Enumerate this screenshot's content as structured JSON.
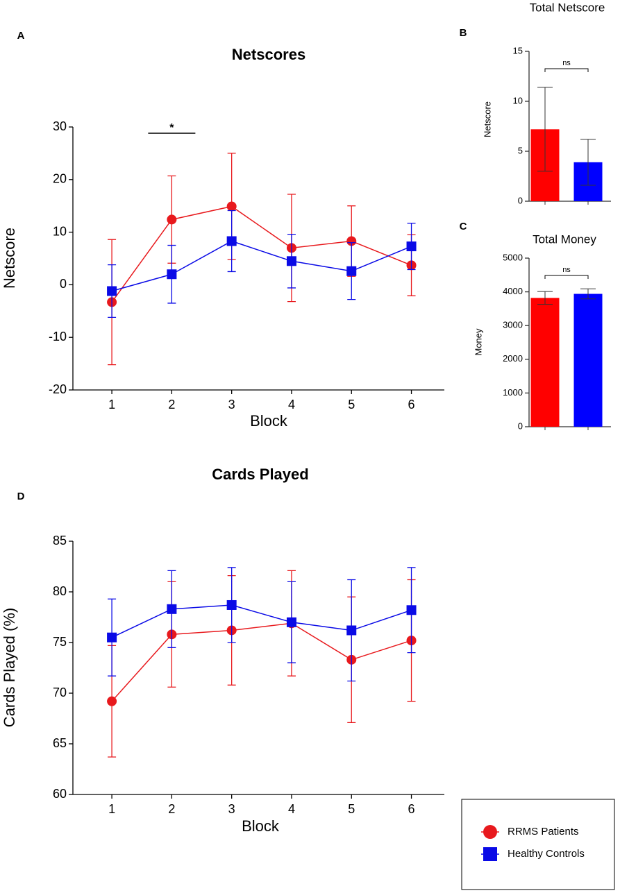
{
  "chart_data": [
    {
      "type": "line",
      "panel": "A",
      "title": "Netscores",
      "xlabel": "Block",
      "ylabel": "Netscore",
      "x": [
        1,
        2,
        3,
        4,
        5,
        6
      ],
      "xlim": [
        0.35,
        6.55
      ],
      "xticks": [
        1,
        2,
        3,
        4,
        5,
        6
      ],
      "ylim": [
        -20,
        30
      ],
      "yticks": [
        -20,
        -10,
        0,
        10,
        20,
        30
      ],
      "annotation": "*",
      "series": [
        {
          "name": "RRMS Patients",
          "color": "#e8191d",
          "marker": "circle",
          "values": [
            -3.3,
            12.4,
            14.9,
            7.0,
            8.3,
            3.7
          ],
          "errors": [
            11.9,
            8.3,
            10.1,
            10.2,
            6.7,
            5.8
          ]
        },
        {
          "name": "Healthy Controls",
          "color": "#0a0ae6",
          "marker": "square",
          "values": [
            -1.2,
            2.0,
            8.3,
            4.5,
            2.6,
            7.3
          ],
          "errors": [
            5.0,
            5.5,
            5.8,
            5.1,
            5.4,
            4.4
          ]
        }
      ]
    },
    {
      "type": "bar",
      "panel": "B",
      "title": "Total Netscore",
      "ylabel": "Netscore",
      "values": [
        7.2,
        3.9
      ],
      "errors": [
        4.2,
        2.3
      ],
      "colors": [
        "#ff0000",
        "#0000ff"
      ],
      "ylim": [
        0,
        15
      ],
      "yticks": [
        0,
        5,
        10,
        15
      ],
      "annotation": "ns"
    },
    {
      "type": "bar",
      "panel": "C",
      "title": "Total Money",
      "ylabel": "Money",
      "values": [
        3820,
        3940
      ],
      "errors": [
        190,
        150
      ],
      "colors": [
        "#ff0000",
        "#0000ff"
      ],
      "ylim": [
        0,
        5000
      ],
      "yticks": [
        0,
        1000,
        2000,
        3000,
        4000,
        5000
      ],
      "annotation": "ns"
    },
    {
      "type": "line",
      "panel": "D",
      "title": "Cards Played",
      "xlabel": "Block",
      "ylabel": "Cards Played (%)",
      "x": [
        1,
        2,
        3,
        4,
        5,
        6
      ],
      "xlim": [
        0.35,
        6.55
      ],
      "xticks": [
        1,
        2,
        3,
        4,
        5,
        6
      ],
      "ylim": [
        60,
        85
      ],
      "yticks": [
        60,
        65,
        70,
        75,
        80,
        85
      ],
      "series": [
        {
          "color": "#e8191d",
          "marker": "circle",
          "values": [
            69.2,
            75.8,
            76.2,
            76.9,
            73.3,
            75.2
          ],
          "errors": [
            5.5,
            5.2,
            5.4,
            5.2,
            6.2,
            6.0
          ]
        },
        {
          "color": "#0a0ae6",
          "marker": "square",
          "values": [
            75.5,
            78.3,
            78.7,
            77.0,
            76.2,
            78.2
          ],
          "errors": [
            3.8,
            3.8,
            3.7,
            4.0,
            5.0,
            4.2
          ]
        }
      ]
    }
  ]
}
